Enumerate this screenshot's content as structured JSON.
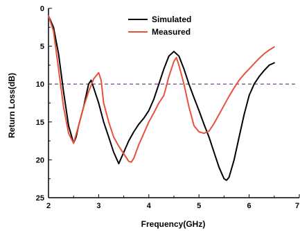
{
  "chart_data": {
    "type": "line",
    "title": "",
    "xlabel": "Frequency(GHz)",
    "ylabel": "Return Loss(dB)",
    "xlim": [
      2,
      7
    ],
    "ylim": [
      0,
      25
    ],
    "y_inverted": true,
    "xticks": [
      2,
      3,
      4,
      5,
      6,
      7
    ],
    "xtick_labels": [
      "2",
      "3",
      "4",
      "5",
      "6",
      "7"
    ],
    "yticks": [
      0,
      5,
      10,
      15,
      20,
      25
    ],
    "ytick_labels": [
      "0",
      "5",
      "10",
      "15",
      "20",
      "25"
    ],
    "grid": false,
    "legend": "top-center",
    "reference_line": {
      "y": 10,
      "color": "#6a2c7a",
      "style": "dashed"
    },
    "series": [
      {
        "name": "Simulated",
        "color": "#000000",
        "x": [
          2.0,
          2.1,
          2.2,
          2.3,
          2.4,
          2.5,
          2.55,
          2.6,
          2.7,
          2.8,
          2.85,
          2.9,
          3.0,
          3.1,
          3.2,
          3.3,
          3.4,
          3.5,
          3.6,
          3.7,
          3.8,
          3.9,
          4.0,
          4.1,
          4.2,
          4.3,
          4.4,
          4.5,
          4.6,
          4.7,
          4.8,
          4.9,
          5.0,
          5.1,
          5.2,
          5.3,
          5.4,
          5.5,
          5.55,
          5.6,
          5.7,
          5.8,
          5.9,
          6.0,
          6.1,
          6.2,
          6.3,
          6.4,
          6.5
        ],
        "y": [
          1.0,
          2.5,
          6.0,
          11.0,
          15.5,
          17.8,
          17.0,
          15.5,
          13.0,
          10.0,
          9.5,
          10.5,
          12.5,
          15.0,
          17.0,
          19.0,
          20.5,
          19.0,
          17.5,
          16.3,
          15.3,
          14.5,
          13.5,
          12.0,
          10.0,
          8.0,
          6.3,
          5.7,
          6.3,
          8.0,
          10.0,
          11.8,
          13.5,
          15.3,
          17.0,
          19.0,
          21.0,
          22.5,
          22.7,
          22.3,
          20.0,
          17.0,
          14.0,
          11.5,
          10.0,
          9.0,
          8.2,
          7.5,
          7.2
        ]
      },
      {
        "name": "Measured",
        "color": "#e8513a",
        "x": [
          2.0,
          2.1,
          2.2,
          2.3,
          2.4,
          2.5,
          2.6,
          2.7,
          2.8,
          2.9,
          3.0,
          3.05,
          3.1,
          3.2,
          3.3,
          3.4,
          3.5,
          3.6,
          3.65,
          3.7,
          3.8,
          3.9,
          4.0,
          4.1,
          4.2,
          4.3,
          4.4,
          4.5,
          4.55,
          4.6,
          4.7,
          4.8,
          4.9,
          5.0,
          5.1,
          5.2,
          5.3,
          5.4,
          5.5,
          5.6,
          5.7,
          5.8,
          5.9,
          6.0,
          6.1,
          6.2,
          6.3,
          6.4,
          6.5
        ],
        "y": [
          1.0,
          3.0,
          8.0,
          13.0,
          16.5,
          17.8,
          15.5,
          13.0,
          11.0,
          9.3,
          8.5,
          9.5,
          12.5,
          15.0,
          17.0,
          18.2,
          19.2,
          20.2,
          20.3,
          19.8,
          18.0,
          16.5,
          15.0,
          13.8,
          12.5,
          11.5,
          9.0,
          7.0,
          6.5,
          7.5,
          10.0,
          13.0,
          15.5,
          16.3,
          16.5,
          16.2,
          15.2,
          14.0,
          12.8,
          11.6,
          10.5,
          9.5,
          8.7,
          8.0,
          7.3,
          6.6,
          6.0,
          5.5,
          5.1
        ]
      }
    ]
  }
}
